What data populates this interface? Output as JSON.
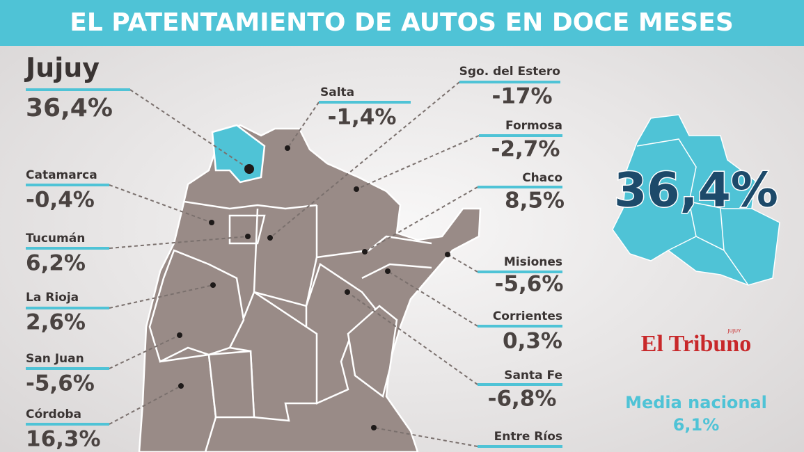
{
  "header": {
    "title": "EL  PATENTAMIENTO DE AUTOS EN DOCE MESES"
  },
  "highlight": {
    "name": "Jujuy",
    "value": "36,4%",
    "big_value": "36,4%"
  },
  "provinces": [
    {
      "name": "Salta",
      "value": "-1,4%"
    },
    {
      "name": "Sgo. del Estero",
      "value": "-17%"
    },
    {
      "name": "Formosa",
      "value": "-2,7%"
    },
    {
      "name": "Chaco",
      "value": "8,5%"
    },
    {
      "name": "Misiones",
      "value": "-5,6%"
    },
    {
      "name": "Corrientes",
      "value": "0,3%"
    },
    {
      "name": "Santa Fe",
      "value": "-6,8%"
    },
    {
      "name": "Catamarca",
      "value": "-0,4%"
    },
    {
      "name": "Tucumán",
      "value": "6,2%"
    },
    {
      "name": "La Rioja",
      "value": "2,6%"
    },
    {
      "name": "San Juan",
      "value": "-5,6%"
    },
    {
      "name": "Córdoba",
      "value": "16,3%"
    },
    {
      "name": "Entre Ríos"
    }
  ],
  "logo": {
    "name": "El Tribuno",
    "tag": "JUJUY"
  },
  "national": {
    "label": "Media nacional",
    "value": "6,1%"
  }
}
